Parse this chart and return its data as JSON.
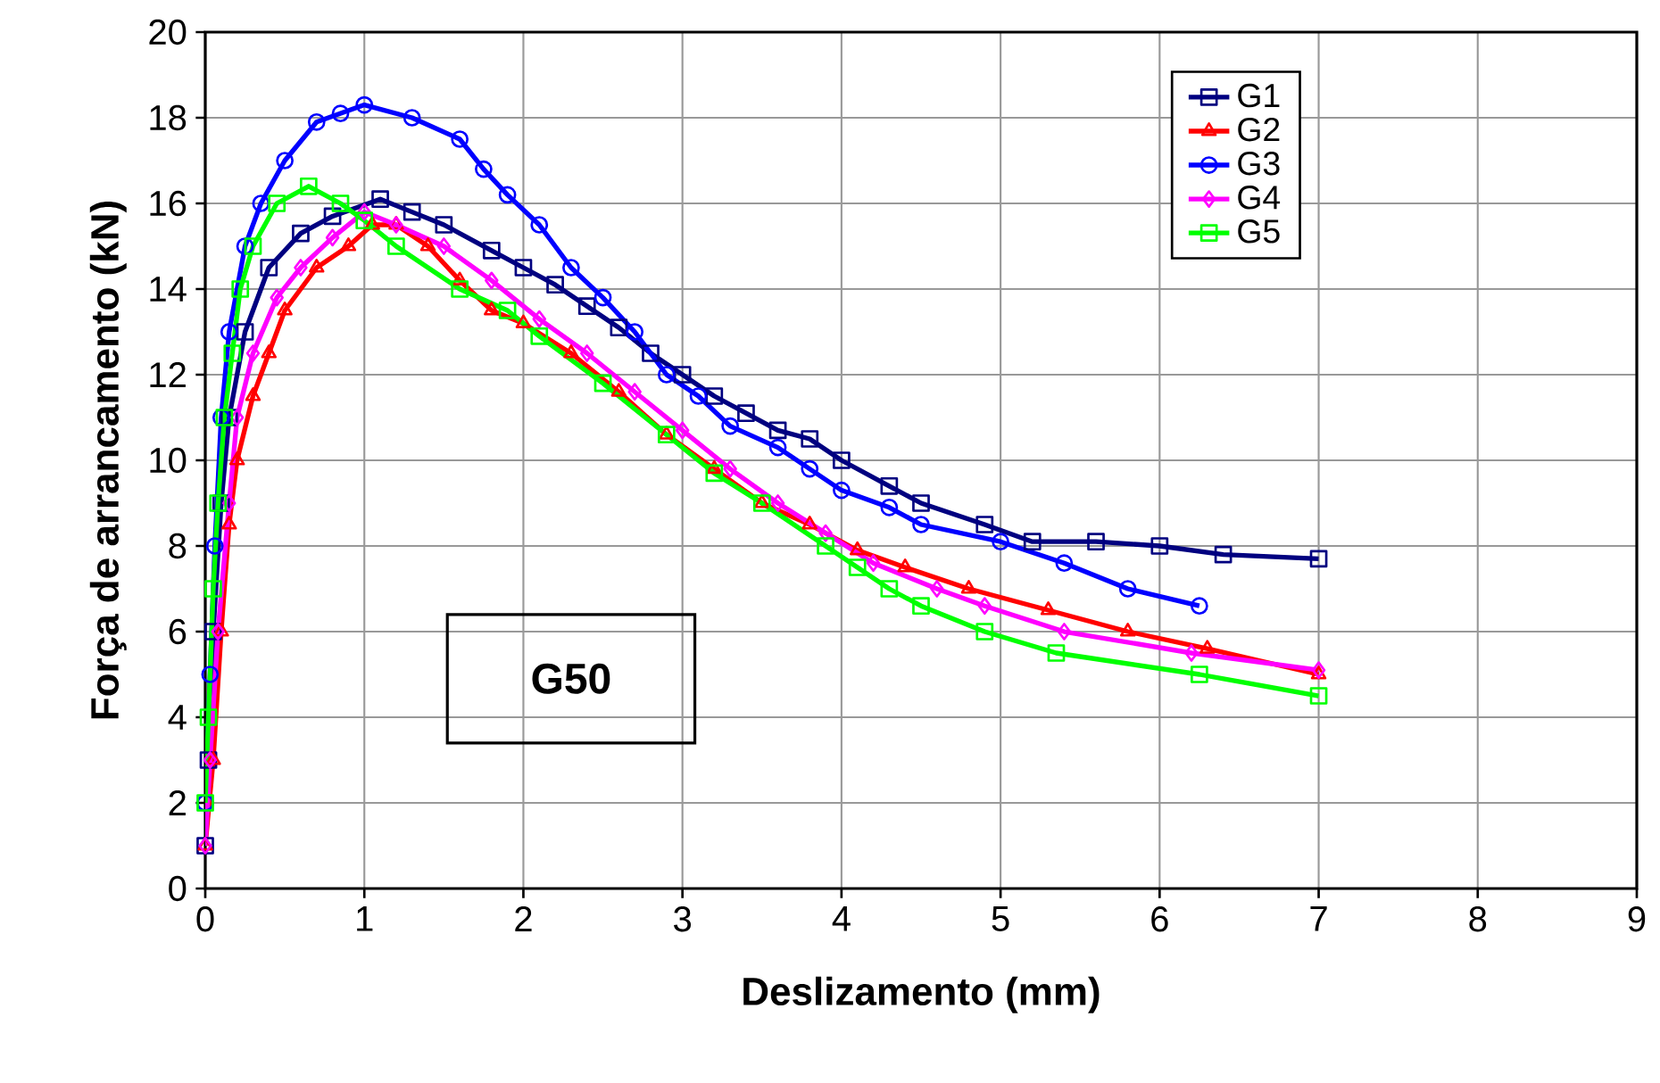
{
  "chart_data": {
    "type": "line",
    "xlabel": "Deslizamento (mm)",
    "ylabel": "Força de arrancamento (kN)",
    "xlim": [
      0,
      9
    ],
    "xticks": [
      0,
      1,
      2,
      3,
      4,
      5,
      6,
      7,
      8,
      9
    ],
    "ylim": [
      0,
      20
    ],
    "yticks": [
      0,
      2,
      4,
      6,
      8,
      10,
      12,
      14,
      16,
      18,
      20
    ],
    "grid": true,
    "legend": "top right",
    "line_style": "solid",
    "annotations": [
      "G50"
    ],
    "series": [
      {
        "name": "G1",
        "color": "#000080",
        "marker": "square",
        "x": [
          0,
          0.02,
          0.05,
          0.1,
          0.15,
          0.25,
          0.4,
          0.6,
          0.8,
          1.1,
          1.3,
          1.5,
          1.8,
          2.0,
          2.2,
          2.4,
          2.6,
          2.8,
          3.0,
          3.2,
          3.4,
          3.6,
          3.8,
          4.0,
          4.3,
          4.5,
          4.9,
          5.2,
          5.6,
          6.0,
          6.4,
          7.0
        ],
        "values": [
          1,
          3,
          6,
          9,
          11,
          13,
          14.5,
          15.3,
          15.7,
          16.1,
          15.8,
          15.5,
          14.9,
          14.5,
          14.1,
          13.6,
          13.1,
          12.5,
          12.0,
          11.5,
          11.1,
          10.7,
          10.5,
          10.0,
          9.4,
          9.0,
          8.5,
          8.1,
          8.1,
          8.0,
          7.8,
          7.7
        ]
      },
      {
        "name": "G2",
        "color": "#ff0000",
        "marker": "triangle",
        "x": [
          0,
          0.05,
          0.1,
          0.15,
          0.2,
          0.3,
          0.4,
          0.5,
          0.7,
          0.9,
          1.05,
          1.2,
          1.4,
          1.6,
          1.8,
          2.0,
          2.3,
          2.6,
          2.9,
          3.2,
          3.5,
          3.8,
          4.1,
          4.4,
          4.8,
          5.3,
          5.8,
          6.3,
          7.0
        ],
        "values": [
          1,
          3,
          6,
          8.5,
          10,
          11.5,
          12.5,
          13.5,
          14.5,
          15.0,
          15.5,
          15.5,
          15.0,
          14.2,
          13.5,
          13.2,
          12.5,
          11.6,
          10.6,
          9.8,
          9.0,
          8.5,
          7.9,
          7.5,
          7.0,
          6.5,
          6.0,
          5.6,
          5.0
        ]
      },
      {
        "name": "G3",
        "color": "#0000ff",
        "marker": "circle",
        "x": [
          0,
          0.03,
          0.06,
          0.1,
          0.15,
          0.25,
          0.35,
          0.5,
          0.7,
          0.85,
          1.0,
          1.3,
          1.6,
          1.75,
          1.9,
          2.1,
          2.3,
          2.5,
          2.7,
          2.9,
          3.1,
          3.3,
          3.6,
          3.8,
          4.0,
          4.3,
          4.5,
          5.0,
          5.4,
          5.8,
          6.25
        ],
        "values": [
          2,
          5,
          8,
          11,
          13,
          15,
          16,
          17,
          17.9,
          18.1,
          18.3,
          18.0,
          17.5,
          16.8,
          16.2,
          15.5,
          14.5,
          13.8,
          13.0,
          12.0,
          11.5,
          10.8,
          10.3,
          9.8,
          9.3,
          8.9,
          8.5,
          8.1,
          7.6,
          7.0,
          6.6
        ]
      },
      {
        "name": "G4",
        "color": "#ff00ff",
        "marker": "diamond",
        "x": [
          0,
          0.03,
          0.08,
          0.15,
          0.2,
          0.3,
          0.45,
          0.6,
          0.8,
          1.0,
          1.2,
          1.5,
          1.8,
          2.1,
          2.4,
          2.7,
          3.0,
          3.3,
          3.6,
          3.9,
          4.2,
          4.6,
          4.9,
          5.4,
          6.2,
          7.0
        ],
        "values": [
          1,
          3,
          6,
          9,
          11,
          12.5,
          13.8,
          14.5,
          15.2,
          15.8,
          15.5,
          15.0,
          14.2,
          13.3,
          12.5,
          11.6,
          10.7,
          9.8,
          9.0,
          8.3,
          7.6,
          7.0,
          6.6,
          6.0,
          5.5,
          5.1
        ]
      },
      {
        "name": "G5",
        "color": "#00ff00",
        "marker": "square",
        "x": [
          0,
          0.02,
          0.05,
          0.08,
          0.12,
          0.17,
          0.22,
          0.3,
          0.45,
          0.65,
          0.85,
          1.0,
          1.2,
          1.6,
          1.9,
          2.1,
          2.5,
          2.9,
          3.2,
          3.5,
          3.9,
          4.1,
          4.3,
          4.5,
          4.9,
          5.35,
          6.25,
          7.0
        ],
        "values": [
          2,
          4,
          7,
          9,
          11,
          12.5,
          14,
          15,
          16,
          16.4,
          16.0,
          15.6,
          15.0,
          14.0,
          13.5,
          12.9,
          11.8,
          10.6,
          9.7,
          9.0,
          8.0,
          7.5,
          7.0,
          6.6,
          6.0,
          5.5,
          5.0,
          4.5
        ]
      }
    ]
  }
}
